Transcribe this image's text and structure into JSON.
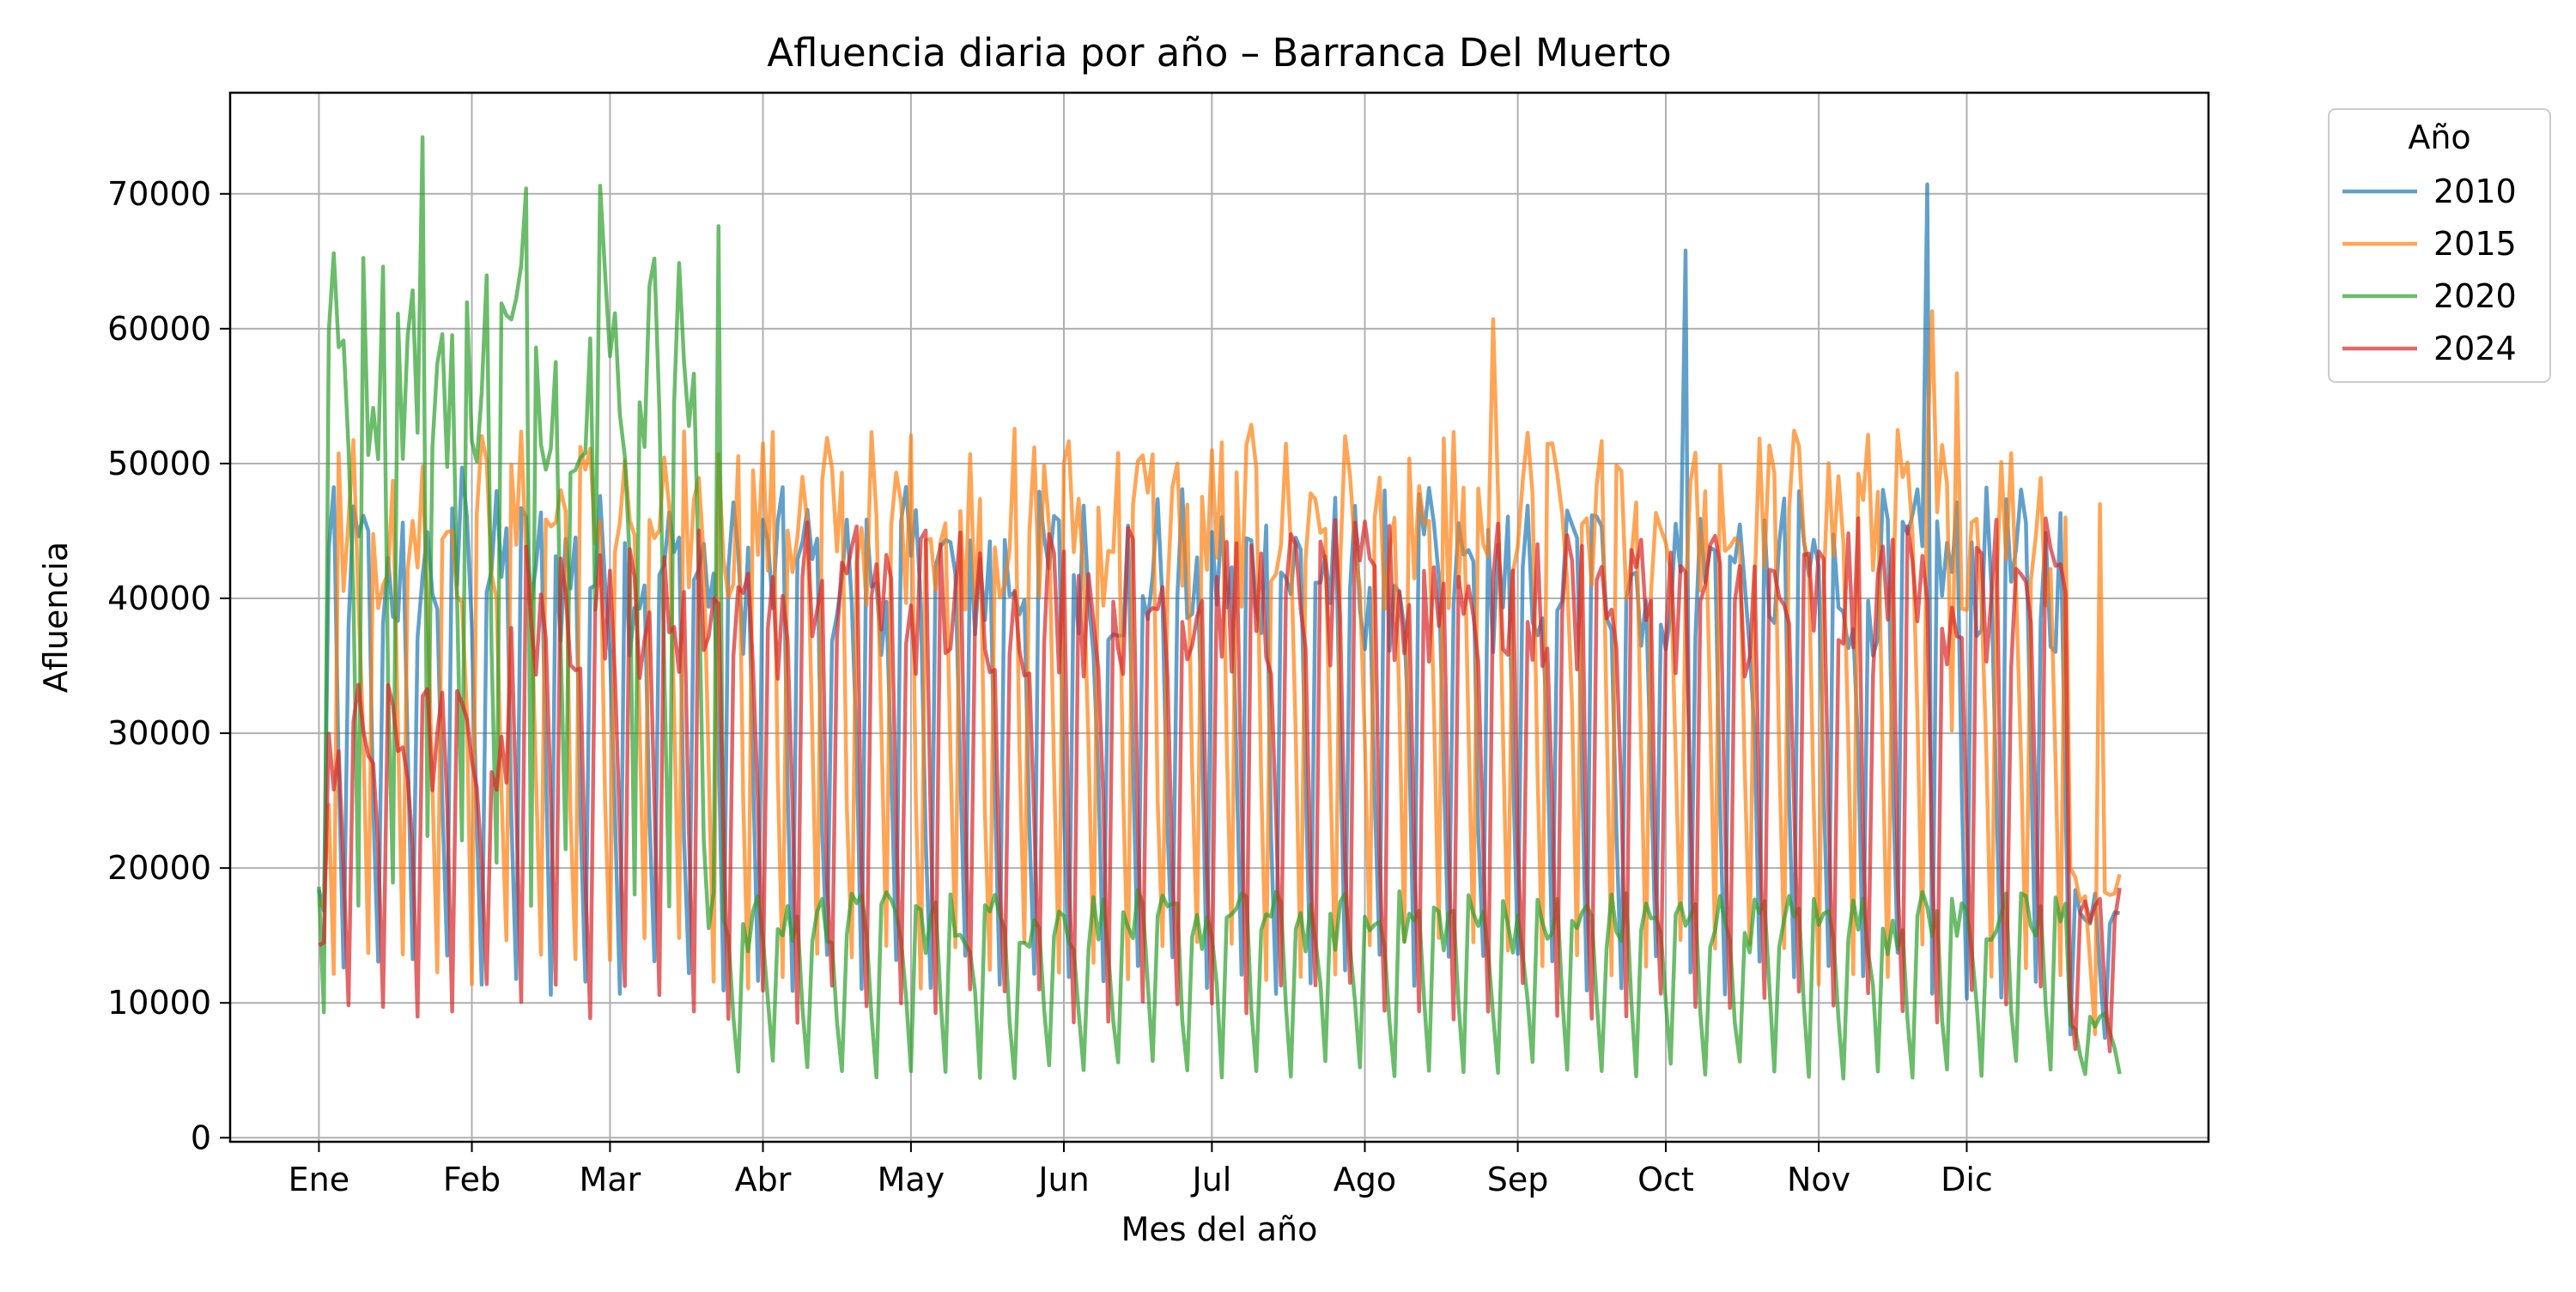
{
  "chart_data": {
    "type": "line",
    "title": "Afluencia diaria por año – Barranca Del Muerto",
    "xlabel": "Mes del año",
    "ylabel": "Afluencia",
    "x_ticks": [
      {
        "day": 1,
        "label": "Ene"
      },
      {
        "day": 32,
        "label": "Feb"
      },
      {
        "day": 60,
        "label": "Mar"
      },
      {
        "day": 91,
        "label": "Abr"
      },
      {
        "day": 121,
        "label": "May"
      },
      {
        "day": 152,
        "label": "Jun"
      },
      {
        "day": 182,
        "label": "Jul"
      },
      {
        "day": 213,
        "label": "Ago"
      },
      {
        "day": 244,
        "label": "Sep"
      },
      {
        "day": 274,
        "label": "Oct"
      },
      {
        "day": 305,
        "label": "Nov"
      },
      {
        "day": 335,
        "label": "Dic"
      }
    ],
    "xlim": [
      -17,
      384
    ],
    "y_ticks": [
      0,
      10000,
      20000,
      30000,
      40000,
      50000,
      60000,
      70000
    ],
    "ylim": [
      -300,
      77500
    ],
    "grid": true,
    "legend": {
      "title": "Año",
      "position": "outside-top-right"
    },
    "series": [
      {
        "name": "2010",
        "color": "#1f77b4",
        "weekday": 42000,
        "sat": 26000,
        "sun": 12000,
        "spikes": [
          [
            278,
            65800
          ],
          [
            327,
            70700
          ],
          [
            30,
            49700
          ]
        ]
      },
      {
        "name": "2015",
        "color": "#ff7f0e",
        "weekday": 46000,
        "sat": 28000,
        "sun": 13000,
        "spikes": [
          [
            239,
            60700
          ],
          [
            328,
            61300
          ],
          [
            333,
            56700
          ],
          [
            362,
            47000
          ]
        ]
      },
      {
        "name": "2020",
        "color": "#2ca02c",
        "weekday": 16000,
        "sat": 10000,
        "sun": 5000,
        "early_weekday": 58000,
        "early_sat": 40000,
        "early_sun": 20000,
        "early_end": 80,
        "spikes": [
          [
            22,
            74200
          ],
          [
            58,
            70600
          ],
          [
            43,
            70400
          ],
          [
            82,
            67600
          ]
        ]
      },
      {
        "name": "2024",
        "color": "#d62728",
        "weekday": 40000,
        "sat": 22000,
        "sun": 10000,
        "jan_weekday": 29500,
        "spikes": []
      }
    ]
  }
}
